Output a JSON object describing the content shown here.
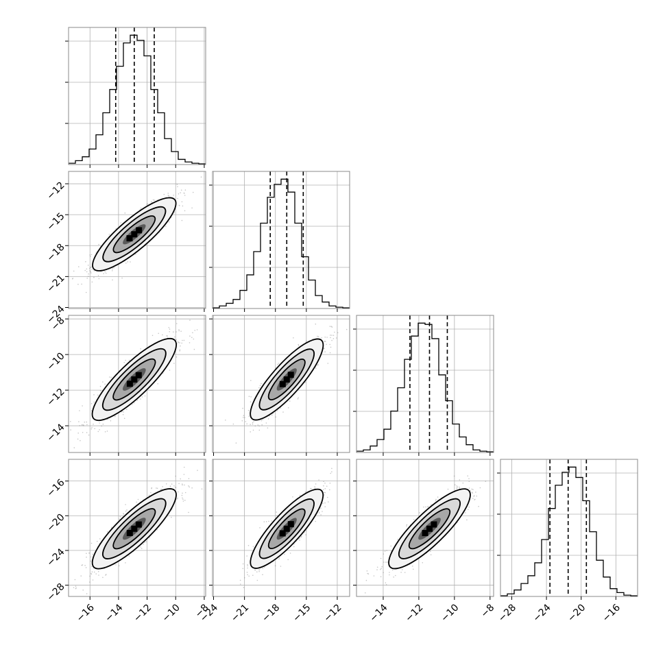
{
  "chart_data": {
    "type": "corner",
    "parameters": [
      {
        "ticks": [
          -16,
          -14,
          -12,
          -10,
          -8
        ],
        "range": [
          -17.5,
          -7.9
        ],
        "quantiles": [
          -14.2,
          -12.9,
          -11.5
        ]
      },
      {
        "ticks": [
          -24,
          -21,
          -18,
          -15,
          -12
        ],
        "range": [
          -24.1,
          -10.8
        ],
        "quantiles": [
          -18.5,
          -16.9,
          -15.3
        ]
      },
      {
        "ticks": [
          -14,
          -12,
          -10,
          -8
        ],
        "range": [
          -15.5,
          -7.8
        ],
        "quantiles": [
          -12.5,
          -11.4,
          -10.4
        ]
      },
      {
        "ticks": [
          -28,
          -24,
          -20,
          -16
        ],
        "range": [
          -29.3,
          -13.5
        ],
        "quantiles": [
          -23.6,
          -21.5,
          -19.4
        ]
      }
    ],
    "histograms": [
      [
        0.01,
        0.03,
        0.06,
        0.12,
        0.23,
        0.4,
        0.58,
        0.76,
        0.94,
        1.0,
        0.96,
        0.84,
        0.58,
        0.4,
        0.2,
        0.1,
        0.04,
        0.02,
        0.01,
        0.005
      ],
      [
        0.005,
        0.02,
        0.04,
        0.07,
        0.14,
        0.26,
        0.44,
        0.66,
        0.86,
        0.96,
        1.0,
        0.9,
        0.66,
        0.4,
        0.22,
        0.1,
        0.05,
        0.02,
        0.01,
        0.005
      ],
      [
        0.01,
        0.02,
        0.05,
        0.1,
        0.18,
        0.32,
        0.5,
        0.72,
        0.9,
        1.0,
        0.99,
        0.88,
        0.6,
        0.4,
        0.22,
        0.12,
        0.06,
        0.02,
        0.01,
        0.005
      ],
      [
        0.005,
        0.02,
        0.05,
        0.1,
        0.16,
        0.26,
        0.44,
        0.68,
        0.86,
        0.96,
        1.0,
        0.92,
        0.74,
        0.5,
        0.28,
        0.15,
        0.06,
        0.03,
        0.01,
        0.005
      ]
    ],
    "grid": true,
    "histogram_yticks": 3
  },
  "style": {
    "frame_color": "#888888",
    "grid_color": "#b0b0b0",
    "line_color": "#000000",
    "scatter_color": "#7f7f7f"
  }
}
